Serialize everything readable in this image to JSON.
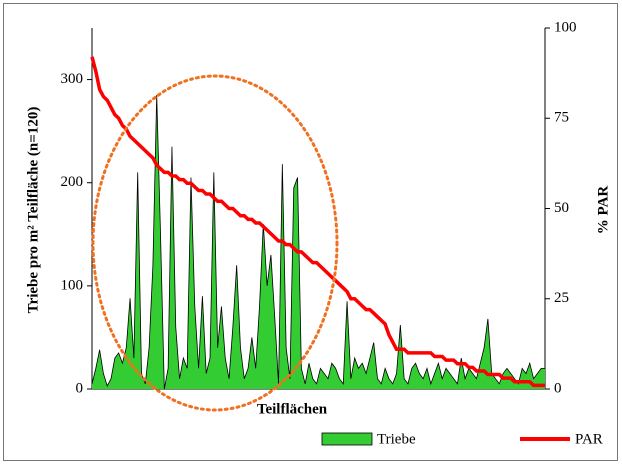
{
  "chart_data": {
    "type": "area-line",
    "xlabel": "Teilflächen",
    "ylabel": "Triebe pro m² Teilfläche (n=120)",
    "y2label": "% PAR",
    "categories": [
      null,
      null,
      null,
      null,
      null,
      null,
      null,
      null,
      null,
      null,
      null,
      null,
      null,
      null,
      null,
      null,
      null,
      null,
      null,
      null,
      null,
      null,
      null,
      null,
      null,
      null,
      null,
      null,
      null,
      null,
      null,
      null,
      null,
      null,
      null,
      null,
      null,
      null,
      null,
      null,
      null,
      null,
      null,
      null,
      null,
      null,
      null,
      null,
      null,
      null,
      null,
      null,
      null,
      null,
      null,
      null,
      null,
      null,
      null,
      null,
      null,
      null,
      null,
      null,
      null,
      null,
      null,
      null,
      null,
      null,
      null,
      null,
      null,
      null,
      null,
      null,
      null,
      null,
      null,
      null,
      null,
      null,
      null,
      null,
      null,
      null,
      null,
      null,
      null,
      null,
      null,
      null,
      null,
      null,
      null,
      null,
      null,
      null,
      null,
      null,
      null,
      null,
      null,
      null,
      null,
      null,
      null,
      null,
      null,
      null,
      null,
      null,
      null,
      null,
      null,
      null,
      null,
      null,
      null,
      null
    ],
    "series": [
      {
        "name": "Triebe",
        "color": "#33cc33",
        "values": [
          5,
          20,
          38,
          15,
          3,
          10,
          30,
          35,
          25,
          40,
          88,
          30,
          210,
          15,
          5,
          40,
          120,
          285,
          150,
          0,
          20,
          235,
          60,
          10,
          30,
          20,
          205,
          80,
          20,
          90,
          15,
          30,
          210,
          40,
          80,
          30,
          10,
          60,
          120,
          40,
          10,
          20,
          50,
          20,
          80,
          160,
          100,
          130,
          70,
          5,
          218,
          40,
          10,
          195,
          205,
          20,
          5,
          25,
          10,
          5,
          20,
          15,
          10,
          25,
          20,
          10,
          5,
          85,
          10,
          30,
          20,
          25,
          15,
          30,
          45,
          10,
          5,
          20,
          10,
          5,
          15,
          62,
          10,
          5,
          20,
          25,
          15,
          10,
          20,
          5,
          15,
          25,
          10,
          20,
          15,
          10,
          5,
          30,
          10,
          20,
          15,
          10,
          25,
          40,
          68,
          15,
          10,
          5,
          15,
          20,
          15,
          10,
          5,
          20,
          15,
          25,
          10,
          15,
          20,
          20
        ]
      },
      {
        "name": "PAR",
        "color": "#ff0000",
        "axis": "y2",
        "values": [
          92,
          88,
          83,
          81,
          80,
          78,
          76,
          75,
          73,
          72,
          70,
          69,
          68,
          67,
          66,
          65,
          64,
          62,
          61,
          60,
          60,
          59,
          59,
          58,
          58,
          57,
          57,
          56,
          55,
          55,
          54,
          54,
          53,
          52,
          52,
          51,
          50,
          50,
          49,
          48,
          48,
          47,
          47,
          46,
          46,
          45,
          44,
          43,
          42,
          41,
          41,
          40,
          40,
          39,
          38,
          38,
          37,
          36,
          35,
          35,
          34,
          33,
          32,
          31,
          30,
          29,
          28,
          27,
          25,
          25,
          24,
          23,
          22,
          22,
          21,
          20,
          19,
          18,
          15,
          13,
          11,
          11,
          11,
          10,
          10,
          10,
          10,
          10,
          10,
          10,
          9,
          9,
          9,
          8,
          8,
          8,
          7,
          7,
          7,
          6,
          6,
          5,
          5,
          5,
          4,
          4,
          4,
          4,
          3,
          3,
          3,
          2,
          2,
          2,
          2,
          2,
          1,
          1,
          1,
          1
        ]
      }
    ],
    "ylim": [
      0,
      350
    ],
    "yticks": [
      0,
      100,
      200,
      300
    ],
    "y2lim": [
      0,
      100
    ],
    "y2ticks": [
      0,
      25,
      50,
      75,
      100
    ],
    "legend": "bottom"
  }
}
